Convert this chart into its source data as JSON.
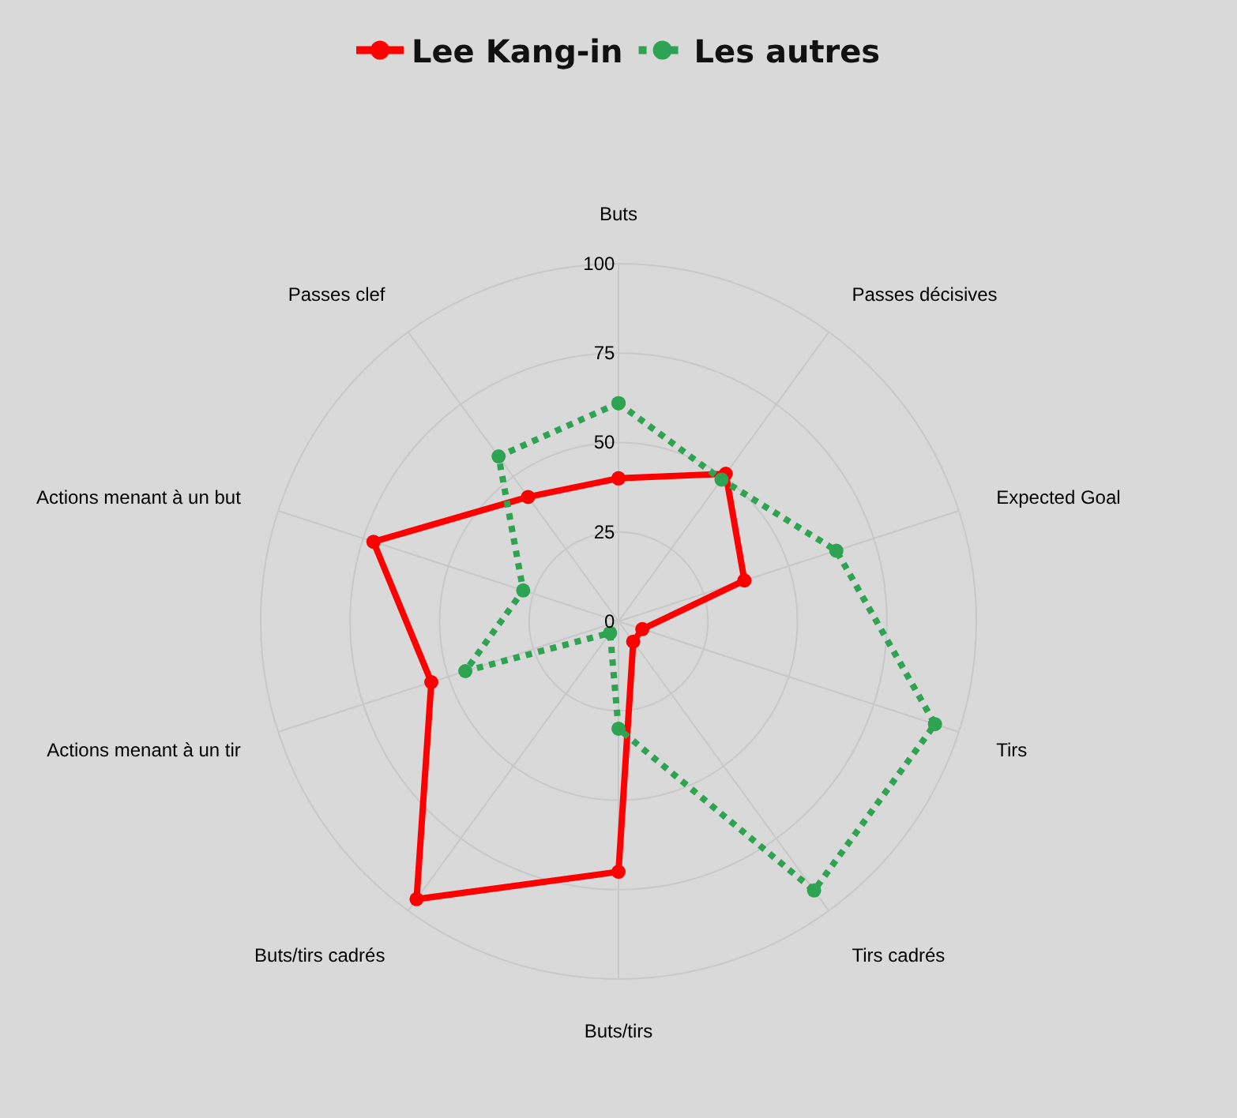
{
  "chart_data": {
    "type": "radar",
    "categories": [
      "Buts",
      "Passes décisives",
      "Expected Goal",
      "Tirs",
      "Tirs cadrés",
      "Buts/tirs",
      "Buts/tirs cadrés",
      "Actions menant à un tir",
      "Actions menant à un but",
      "Passes clef"
    ],
    "series": [
      {
        "name": "Lee Kang-in",
        "color": "#ff0000",
        "line_style": "solid",
        "values": [
          40,
          51,
          37,
          7,
          7,
          70,
          96,
          55,
          72,
          43
        ]
      },
      {
        "name": "Les autres",
        "color": "#2ea352",
        "line_style": "dotted",
        "values": [
          61,
          49,
          64,
          93,
          93,
          30,
          4,
          45,
          28,
          57
        ]
      }
    ],
    "ylim": [
      0,
      100
    ],
    "yticks": [
      0,
      25,
      50,
      75,
      100
    ],
    "grid": true,
    "legend": "top",
    "marker": "circle"
  }
}
